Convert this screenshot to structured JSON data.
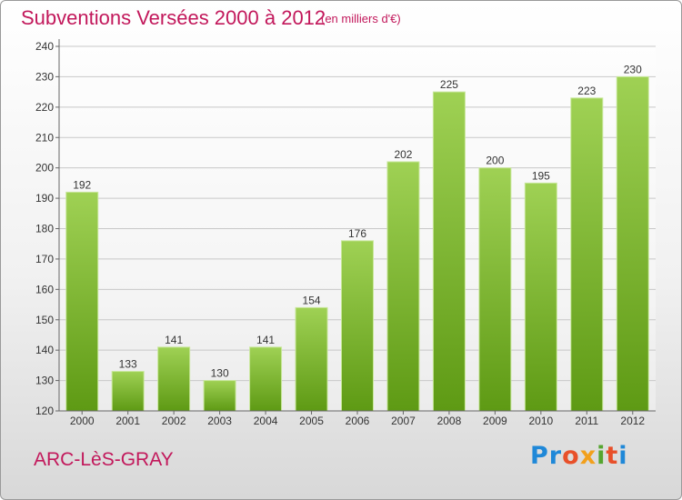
{
  "title": "Subventions Versées 2000 à 2012",
  "unit_note": "(en milliers d'€)",
  "commune": "ARC-LèS-GRAY",
  "logo": {
    "text": "Proxiti",
    "colors": [
      "#1f88d8",
      "#e8502a",
      "#f2a01c",
      "#55a530"
    ]
  },
  "colors": {
    "accent_text": "#c2185b",
    "bar_top": "#9fd154",
    "bar_bottom": "#5e9a14",
    "bar_edge": "#c8e79a"
  },
  "chart_data": {
    "type": "bar",
    "title": "Subventions Versées 2000 à 2012",
    "xlabel": "",
    "ylabel": "",
    "categories": [
      "2000",
      "2001",
      "2002",
      "2003",
      "2004",
      "2005",
      "2006",
      "2007",
      "2008",
      "2009",
      "2010",
      "2011",
      "2012"
    ],
    "values": [
      192,
      133,
      141,
      130,
      141,
      154,
      176,
      202,
      225,
      200,
      195,
      223,
      230
    ],
    "ylim": [
      120,
      240
    ],
    "yticks": [
      120,
      130,
      140,
      150,
      160,
      170,
      180,
      190,
      200,
      210,
      220,
      230,
      240
    ],
    "grid": true
  }
}
